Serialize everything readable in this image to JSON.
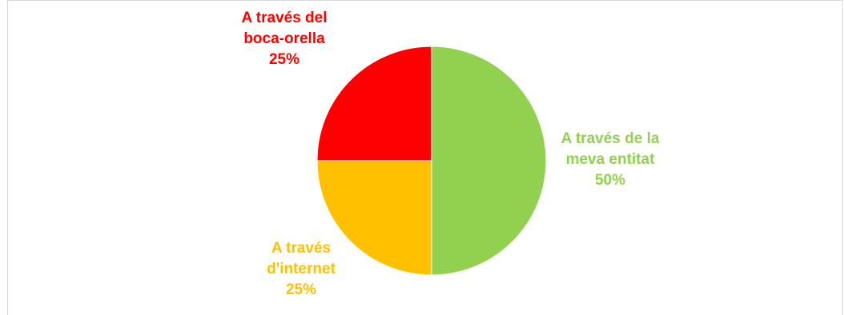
{
  "chart_data": {
    "type": "pie",
    "title": "",
    "slices": [
      {
        "label_lines": [
          "A través de la",
          "meva entitat"
        ],
        "value": 50,
        "display": "50%",
        "color": "#92d050"
      },
      {
        "label_lines": [
          "A través",
          "d'internet"
        ],
        "value": 25,
        "display": "25%",
        "color": "#ffc000"
      },
      {
        "label_lines": [
          "A través del",
          "boca-orella"
        ],
        "value": 25,
        "display": "25%",
        "color": "#ff0000"
      }
    ],
    "legend": "none",
    "data_labels": "outside, colored by slice"
  }
}
